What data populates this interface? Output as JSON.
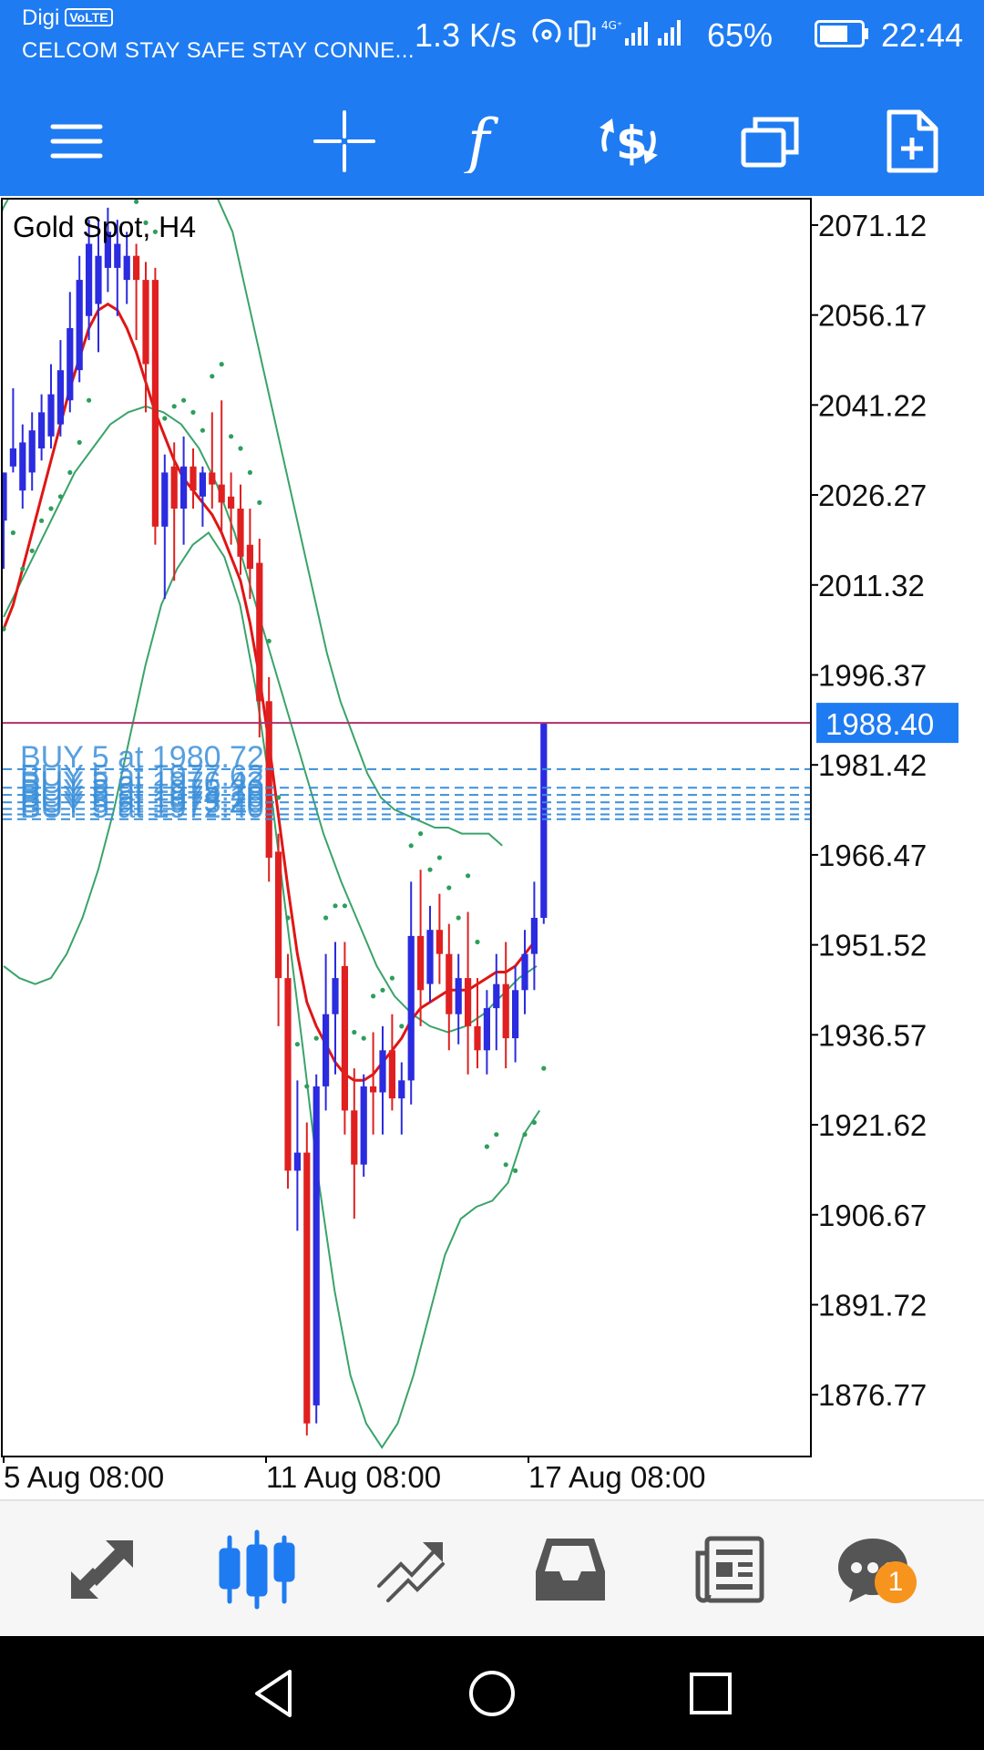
{
  "status_bar": {
    "carrier": "Digi",
    "volte": "VoLTE",
    "notification": "CELCOM STAY SAFE STAY CONNE...",
    "speed": "1.3 K/s",
    "battery": "65%",
    "time": "22:44"
  },
  "toolbar": {
    "menu": "menu-icon",
    "crosshair": "crosshair-icon",
    "indicators": "function-icon",
    "trade": "dollar-cycle-icon",
    "windows": "windows-icon",
    "new_order": "new-document-icon"
  },
  "chart": {
    "symbol_label": "Gold Spot, H4",
    "current_price": "1988.40",
    "colors": {
      "bull": "#2b2be0",
      "bear": "#e02020",
      "ma": "#e01515",
      "bands": "#3aa36a",
      "sar": "#2e9e5c",
      "orders": "#3b8fd9",
      "price_tag": "#1e7bf2",
      "price_line": "#b0306a"
    }
  },
  "chart_data": {
    "type": "candlestick",
    "title": "Gold Spot, H4",
    "y_ticks": [
      "2071.12",
      "2056.17",
      "2041.22",
      "2026.27",
      "2011.32",
      "1996.37",
      "1981.42",
      "1966.47",
      "1951.52",
      "1936.57",
      "1921.62",
      "1906.67",
      "1891.72",
      "1876.77"
    ],
    "x_ticks": [
      "5 Aug 08:00",
      "11 Aug 08:00",
      "17 Aug 08:00"
    ],
    "ylim": [
      1866.5,
      2075.5
    ],
    "current_price": 1988.4,
    "orders": [
      {
        "label": "BUY 5 at 1980.72",
        "price": 1980.72
      },
      {
        "label": "BUY 5 at 1977.62",
        "price": 1977.62
      },
      {
        "label": "BUY 5 at 1976.43",
        "price": 1976.43
      },
      {
        "label": "BUY 5 at 1975.20",
        "price": 1975.2
      },
      {
        "label": "BUY 5 at 1974.10",
        "price": 1974.1
      },
      {
        "label": "BUY 5 at 1973.20",
        "price": 1973.2
      },
      {
        "label": "BUY 5 at 1972.40",
        "price": 1972.4
      }
    ],
    "candles": [
      {
        "o": 2022,
        "h": 2030,
        "l": 2014,
        "c": 2030
      },
      {
        "o": 2031,
        "h": 2044,
        "l": 2030,
        "c": 2034
      },
      {
        "o": 2027,
        "h": 2038,
        "l": 2024,
        "c": 2035
      },
      {
        "o": 2030,
        "h": 2040,
        "l": 2027,
        "c": 2037
      },
      {
        "o": 2034,
        "h": 2043,
        "l": 2032,
        "c": 2040
      },
      {
        "o": 2036,
        "h": 2048,
        "l": 2034,
        "c": 2043
      },
      {
        "o": 2038,
        "h": 2052,
        "l": 2036,
        "c": 2047
      },
      {
        "o": 2042,
        "h": 2060,
        "l": 2040,
        "c": 2054
      },
      {
        "o": 2047,
        "h": 2066,
        "l": 2045,
        "c": 2062
      },
      {
        "o": 2056,
        "h": 2072,
        "l": 2052,
        "c": 2068
      },
      {
        "o": 2058,
        "h": 2072,
        "l": 2050,
        "c": 2066
      },
      {
        "o": 2064,
        "h": 2074,
        "l": 2060,
        "c": 2070
      },
      {
        "o": 2064,
        "h": 2072,
        "l": 2056,
        "c": 2068
      },
      {
        "o": 2062,
        "h": 2070,
        "l": 2058,
        "c": 2066
      },
      {
        "o": 2066,
        "h": 2068,
        "l": 2052,
        "c": 2062
      },
      {
        "o": 2062,
        "h": 2065,
        "l": 2040,
        "c": 2048
      },
      {
        "o": 2062,
        "h": 2064,
        "l": 2018,
        "c": 2021
      },
      {
        "o": 2021,
        "h": 2033,
        "l": 2009,
        "c": 2030
      },
      {
        "o": 2031,
        "h": 2035,
        "l": 2012,
        "c": 2024
      },
      {
        "o": 2024,
        "h": 2036,
        "l": 2018,
        "c": 2031
      },
      {
        "o": 2031,
        "h": 2034,
        "l": 2024,
        "c": 2027
      },
      {
        "o": 2026,
        "h": 2031,
        "l": 2021,
        "c": 2030
      },
      {
        "o": 2030,
        "h": 2040,
        "l": 2024,
        "c": 2028
      },
      {
        "o": 2028,
        "h": 2042,
        "l": 2020,
        "c": 2025
      },
      {
        "o": 2026,
        "h": 2030,
        "l": 2018,
        "c": 2024
      },
      {
        "o": 2024,
        "h": 2028,
        "l": 2013,
        "c": 2016
      },
      {
        "o": 2018,
        "h": 2024,
        "l": 2009,
        "c": 2014
      },
      {
        "o": 2015,
        "h": 2019,
        "l": 1986,
        "c": 1992
      },
      {
        "o": 1992,
        "h": 1996,
        "l": 1962,
        "c": 1966
      },
      {
        "o": 1967,
        "h": 1970,
        "l": 1938,
        "c": 1946
      },
      {
        "o": 1946,
        "h": 1950,
        "l": 1911,
        "c": 1914
      },
      {
        "o": 1914,
        "h": 1929,
        "l": 1904,
        "c": 1917
      },
      {
        "o": 1917,
        "h": 1922,
        "l": 1870,
        "c": 1872
      },
      {
        "o": 1875,
        "h": 1930,
        "l": 1872,
        "c": 1928
      },
      {
        "o": 1928,
        "h": 1950,
        "l": 1924,
        "c": 1940
      },
      {
        "o": 1940,
        "h": 1952,
        "l": 1930,
        "c": 1946
      },
      {
        "o": 1948,
        "h": 1952,
        "l": 1920,
        "c": 1924
      },
      {
        "o": 1924,
        "h": 1931,
        "l": 1906,
        "c": 1915
      },
      {
        "o": 1915,
        "h": 1930,
        "l": 1913,
        "c": 1928
      },
      {
        "o": 1928,
        "h": 1937,
        "l": 1920,
        "c": 1927
      },
      {
        "o": 1927,
        "h": 1938,
        "l": 1920,
        "c": 1934
      },
      {
        "o": 1934,
        "h": 1940,
        "l": 1924,
        "c": 1926
      },
      {
        "o": 1926,
        "h": 1932,
        "l": 1920,
        "c": 1929
      },
      {
        "o": 1929,
        "h": 1962,
        "l": 1925,
        "c": 1953
      },
      {
        "o": 1953,
        "h": 1964,
        "l": 1938,
        "c": 1944
      },
      {
        "o": 1945,
        "h": 1958,
        "l": 1942,
        "c": 1954
      },
      {
        "o": 1954,
        "h": 1960,
        "l": 1945,
        "c": 1950
      },
      {
        "o": 1950,
        "h": 1955,
        "l": 1934,
        "c": 1940
      },
      {
        "o": 1940,
        "h": 1950,
        "l": 1935,
        "c": 1946
      },
      {
        "o": 1946,
        "h": 1957,
        "l": 1930,
        "c": 1938
      },
      {
        "o": 1938,
        "h": 1946,
        "l": 1931,
        "c": 1934
      },
      {
        "o": 1934,
        "h": 1944,
        "l": 1930,
        "c": 1941
      },
      {
        "o": 1941,
        "h": 1950,
        "l": 1934,
        "c": 1945
      },
      {
        "o": 1945,
        "h": 1952,
        "l": 1931,
        "c": 1936
      },
      {
        "o": 1936,
        "h": 1948,
        "l": 1932,
        "c": 1944
      },
      {
        "o": 1944,
        "h": 1954,
        "l": 1940,
        "c": 1950
      },
      {
        "o": 1950,
        "h": 1962,
        "l": 1944,
        "c": 1956
      },
      {
        "o": 1956,
        "h": 1988.4,
        "l": 1955,
        "c": 1988.4
      }
    ],
    "ma": [
      2004,
      2008,
      2014,
      2020,
      2026,
      2032,
      2038,
      2044,
      2049,
      2054,
      2057,
      2058,
      2057,
      2054,
      2050,
      2045,
      2040,
      2036,
      2032,
      2029,
      2027,
      2025,
      2023,
      2020,
      2016,
      2012,
      2005,
      1996,
      1985,
      1973,
      1961,
      1950,
      1942,
      1938,
      1935,
      1932,
      1930,
      1929,
      1929,
      1930,
      1932,
      1934,
      1936,
      1939,
      1941,
      1942,
      1943,
      1944,
      1944,
      1944,
      1945,
      1946,
      1947,
      1947,
      1948,
      1950,
      1952
    ],
    "bb_upper": [
      2060,
      2068,
      2074,
      2078,
      2082,
      2086,
      2090,
      2094,
      2096,
      2098,
      2098,
      2096,
      2094,
      2092,
      2090,
      2088,
      2085,
      2080,
      2075,
      2070,
      2060,
      2050,
      2040,
      2030,
      2020,
      2010,
      2000,
      1992,
      1986,
      1980,
      1976,
      1974,
      1973,
      1972,
      1971,
      1971,
      1970,
      1970,
      1970,
      1968
    ],
    "bb_middle": [
      2006,
      2012,
      2018,
      2024,
      2030,
      2034,
      2038,
      2040,
      2041,
      2040,
      2038,
      2034,
      2028,
      2020,
      2010,
      2000,
      1990,
      1980,
      1970,
      1962,
      1955,
      1948,
      1943,
      1940,
      1938,
      1937,
      1938,
      1940,
      1943,
      1946,
      1948
    ],
    "bb_lower": [
      1948,
      1946,
      1945,
      1946,
      1950,
      1956,
      1964,
      1974,
      1986,
      1998,
      2008,
      2014,
      2018,
      2020,
      2016,
      2008,
      1994,
      1976,
      1955,
      1934,
      1912,
      1894,
      1880,
      1872,
      1868,
      1872,
      1880,
      1890,
      1900,
      1906,
      1908,
      1909,
      1912,
      1920,
      1924
    ]
  },
  "bottom_nav": [
    {
      "name": "quotes-icon"
    },
    {
      "name": "chart-icon",
      "active": true
    },
    {
      "name": "trade-icon"
    },
    {
      "name": "history-icon"
    },
    {
      "name": "news-icon"
    },
    {
      "name": "chat-icon",
      "badge": "1"
    }
  ],
  "system_nav": [
    "back-icon",
    "home-icon",
    "recents-icon"
  ]
}
